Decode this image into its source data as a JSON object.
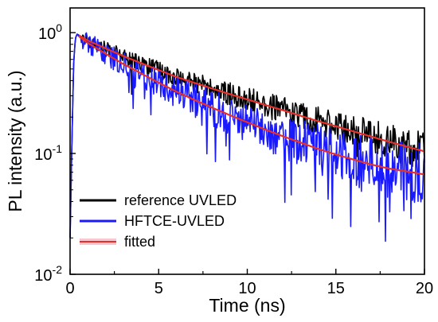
{
  "chart_data": {
    "type": "line",
    "yscale": "log",
    "xlabel": "Time (ns)",
    "ylabel": "PL intensity (a.u.)",
    "xlim": [
      0,
      20
    ],
    "ylim": [
      0.01,
      1.6
    ],
    "xticks": [
      0,
      5,
      10,
      15,
      20
    ],
    "xtick_labels": [
      "0",
      "5",
      "10",
      "15",
      "20"
    ],
    "yticks": [
      1,
      0.1,
      0.01
    ],
    "ytick_labels": [
      {
        "base": "10",
        "exp": "0"
      },
      {
        "base": "10",
        "exp": "-1"
      },
      {
        "base": "10",
        "exp": "-2"
      }
    ],
    "grid": false,
    "legend_position": "bottom-left",
    "series": [
      {
        "name": "reference UVLED",
        "color": "#000000",
        "style": "noisy-line",
        "x": [
          0,
          0.1,
          0.2,
          0.3,
          0.4,
          0.5,
          1,
          2,
          3,
          4,
          5,
          6,
          7,
          8,
          9,
          10,
          11,
          12,
          13,
          14,
          15,
          16,
          17,
          18,
          19,
          20
        ],
        "y": [
          0.02,
          0.12,
          0.55,
          0.9,
          0.97,
          0.95,
          0.86,
          0.74,
          0.64,
          0.56,
          0.49,
          0.43,
          0.385,
          0.345,
          0.31,
          0.28,
          0.252,
          0.228,
          0.205,
          0.185,
          0.168,
          0.152,
          0.138,
          0.125,
          0.114,
          0.104
        ]
      },
      {
        "name": "HFTCE-UVLED",
        "color": "#1a1aff",
        "style": "noisy-line",
        "x": [
          0,
          0.1,
          0.2,
          0.3,
          0.4,
          0.5,
          1,
          2,
          3,
          4,
          5,
          6,
          7,
          8,
          9,
          10,
          11,
          12,
          13,
          14,
          15,
          16,
          17,
          18,
          19,
          20
        ],
        "y": [
          0.02,
          0.12,
          0.55,
          0.9,
          0.97,
          0.93,
          0.82,
          0.67,
          0.55,
          0.46,
          0.385,
          0.325,
          0.278,
          0.24,
          0.208,
          0.181,
          0.158,
          0.139,
          0.123,
          0.109,
          0.098,
          0.089,
          0.081,
          0.075,
          0.071,
          0.067
        ]
      },
      {
        "name": "fitted",
        "color": "#e8302a",
        "style": "smooth-line",
        "curves": [
          {
            "of": "reference UVLED",
            "x": [
              0.5,
              1,
              2,
              3,
              4,
              5,
              6,
              7,
              8,
              9,
              10,
              11,
              12,
              13,
              14,
              15,
              16,
              17,
              18,
              19,
              20
            ],
            "y": [
              0.95,
              0.86,
              0.74,
              0.64,
              0.56,
              0.49,
              0.43,
              0.385,
              0.345,
              0.31,
              0.28,
              0.252,
              0.228,
              0.205,
              0.185,
              0.168,
              0.152,
              0.138,
              0.125,
              0.114,
              0.104
            ]
          },
          {
            "of": "HFTCE-UVLED",
            "x": [
              0.5,
              1,
              2,
              3,
              4,
              5,
              6,
              7,
              8,
              9,
              10,
              11,
              12,
              13,
              14,
              15,
              16,
              17,
              18,
              19,
              20
            ],
            "y": [
              0.93,
              0.82,
              0.67,
              0.55,
              0.46,
              0.385,
              0.325,
              0.278,
              0.24,
              0.208,
              0.181,
              0.158,
              0.139,
              0.123,
              0.109,
              0.098,
              0.089,
              0.081,
              0.075,
              0.071,
              0.067
            ]
          }
        ]
      }
    ]
  }
}
